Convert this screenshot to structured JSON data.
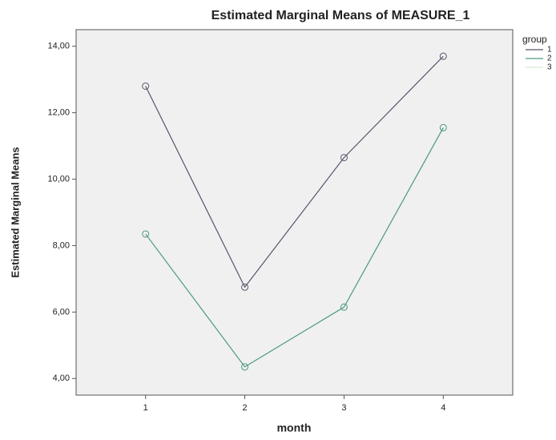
{
  "chart_data": {
    "type": "line",
    "title": "Estimated Marginal Means of MEASURE_1",
    "x_label": "month",
    "y_label": "Estimated Marginal Means",
    "legend_title": "group",
    "x": [
      1,
      2,
      3,
      4
    ],
    "xlim": [
      0.3,
      4.7
    ],
    "xticks": [
      1,
      2,
      3,
      4
    ],
    "ylim": [
      3.5,
      14.5
    ],
    "yticks": [
      {
        "value": 4,
        "label": "4,00"
      },
      {
        "value": 6,
        "label": "6,00"
      },
      {
        "value": 8,
        "label": "8,00"
      },
      {
        "value": 10,
        "label": "10,00"
      },
      {
        "value": 12,
        "label": "12,00"
      },
      {
        "value": 14,
        "label": "14,00"
      }
    ],
    "series": [
      {
        "name": "1",
        "color": "#56566e",
        "values": [
          12.8,
          6.75,
          10.65,
          13.7
        ]
      },
      {
        "name": "2",
        "color": "#4f9a80",
        "values": [
          8.35,
          4.35,
          6.15,
          11.55
        ]
      },
      {
        "name": "3",
        "color": "#d6ead0",
        "values": [
          8.35,
          4.35,
          6.15,
          11.55
        ]
      }
    ]
  }
}
